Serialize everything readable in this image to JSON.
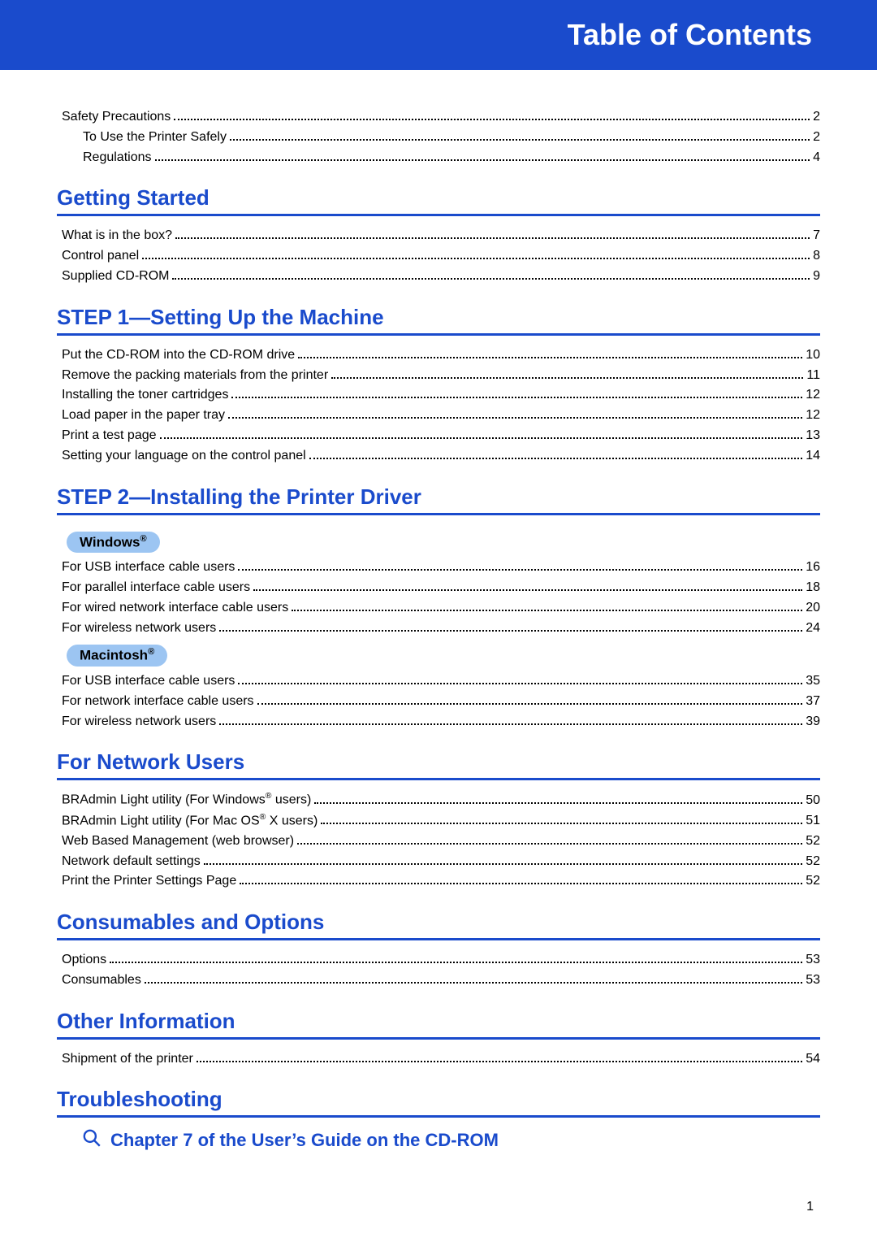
{
  "banner_title": "Table of Contents",
  "page_number": "1",
  "colors": {
    "brand": "#1a4bcc",
    "pill_bg": "#9cc5f2",
    "text": "#000000",
    "bg": "#ffffff"
  },
  "sections": [
    {
      "id": "safety",
      "heading": null,
      "entries": [
        {
          "label": "Safety Precautions",
          "page": "2",
          "indent": 0
        },
        {
          "label": "To Use the Printer Safely",
          "page": "2",
          "indent": 1
        },
        {
          "label": "Regulations",
          "page": "4",
          "indent": 1
        }
      ]
    },
    {
      "id": "getting-started",
      "heading": "Getting Started",
      "entries": [
        {
          "label": "What is in the box?",
          "page": "7",
          "indent": 0
        },
        {
          "label": "Control panel",
          "page": "8",
          "indent": 0
        },
        {
          "label": "Supplied CD-ROM",
          "page": "9",
          "indent": 0
        }
      ]
    },
    {
      "id": "step1",
      "heading": "STEP 1—Setting Up the Machine",
      "entries": [
        {
          "label": "Put the CD-ROM into the CD-ROM drive",
          "page": "10",
          "indent": 0
        },
        {
          "label": "Remove the packing materials from the printer",
          "page": "11",
          "indent": 0
        },
        {
          "label": "Installing the toner cartridges",
          "page": "12",
          "indent": 0
        },
        {
          "label": "Load paper in the paper tray",
          "page": "12",
          "indent": 0
        },
        {
          "label": "Print a test page",
          "page": "13",
          "indent": 0
        },
        {
          "label": "Setting your language on the control panel",
          "page": "14",
          "indent": 0
        }
      ]
    },
    {
      "id": "step2",
      "heading": "STEP 2—Installing the Printer Driver",
      "subgroups": [
        {
          "pill": "Windows",
          "pill_sup": "®",
          "entries": [
            {
              "label": "For USB interface cable users",
              "page": "16"
            },
            {
              "label": "For parallel interface cable users",
              "page": "18"
            },
            {
              "label": "For wired network interface cable users",
              "page": "20"
            },
            {
              "label": "For wireless network users",
              "page": "24"
            }
          ]
        },
        {
          "pill": "Macintosh",
          "pill_sup": "®",
          "entries": [
            {
              "label": "For USB interface cable users",
              "page": "35"
            },
            {
              "label": "For network interface cable users",
              "page": "37"
            },
            {
              "label": "For wireless network users",
              "page": "39"
            }
          ]
        }
      ]
    },
    {
      "id": "network",
      "heading": "For Network Users",
      "entries": [
        {
          "label_html": "BRAdmin Light utility (For Windows<sup>®</sup> users)",
          "page": "50",
          "indent": 0
        },
        {
          "label_html": "BRAdmin Light utility (For Mac OS<sup>®</sup> X users)",
          "page": "51",
          "indent": 0
        },
        {
          "label": "Web Based Management (web browser)",
          "page": "52",
          "indent": 0
        },
        {
          "label": "Network default settings",
          "page": "52",
          "indent": 0
        },
        {
          "label": "Print the Printer Settings Page",
          "page": "52",
          "indent": 0
        }
      ]
    },
    {
      "id": "consumables",
      "heading": "Consumables and Options",
      "entries": [
        {
          "label": "Options",
          "page": "53",
          "indent": 0
        },
        {
          "label": "Consumables",
          "page": "53",
          "indent": 0
        }
      ]
    },
    {
      "id": "other",
      "heading": "Other Information",
      "entries": [
        {
          "label": "Shipment of the printer",
          "page": "54",
          "indent": 0
        }
      ]
    },
    {
      "id": "troubleshooting",
      "heading": "Troubleshooting",
      "sub_line": "Chapter 7 of the User’s Guide on the CD-ROM",
      "entries": []
    }
  ]
}
